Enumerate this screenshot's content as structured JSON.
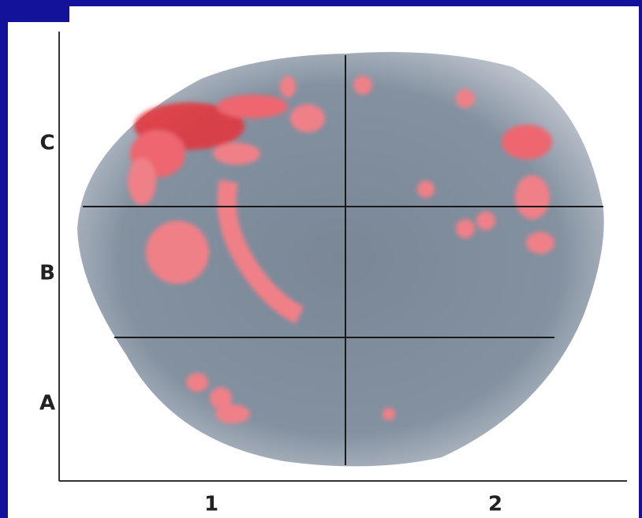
{
  "rows": {
    "labels": [
      "C",
      "B",
      "A"
    ]
  },
  "columns": {
    "labels": [
      "1",
      "2"
    ]
  }
}
